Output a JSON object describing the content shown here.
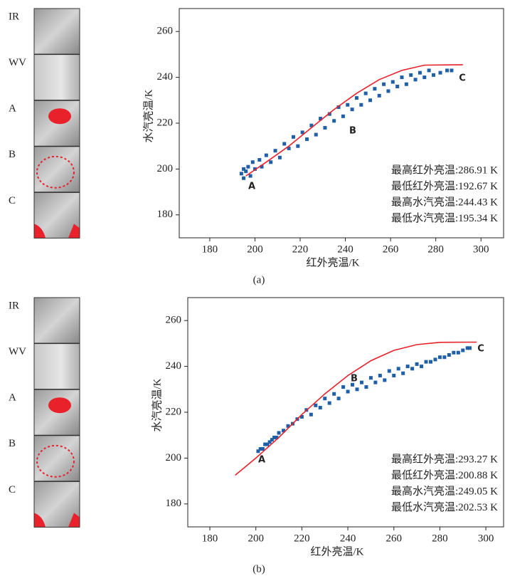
{
  "chart_data": [
    {
      "type": "scatter",
      "caption": "(a)",
      "xlabel": "红外亮温/K",
      "ylabel": "水汽亮温/K",
      "strip_labels": [
        "IR",
        "WV",
        "A",
        "B",
        "C"
      ],
      "xlim": [
        166.5,
        310
      ],
      "ylim": [
        170,
        270
      ],
      "xticks": [
        180,
        200,
        220,
        240,
        260,
        280,
        300
      ],
      "yticks": [
        180,
        200,
        220,
        240,
        260
      ],
      "points": {
        "color": "#1f5fa8",
        "x": [
          194,
          195,
          195,
          196,
          197,
          198,
          199,
          200,
          202,
          203,
          205,
          207,
          209,
          211,
          213,
          215,
          217,
          219,
          221,
          223,
          225,
          227,
          229,
          231,
          233,
          235,
          237,
          239,
          241,
          243,
          245,
          247,
          249,
          251,
          253,
          255,
          257,
          259,
          261,
          263,
          265,
          267,
          269,
          271,
          273,
          275,
          277,
          279,
          282,
          285,
          287
        ],
        "y": [
          198,
          200,
          196,
          199,
          201,
          197,
          203,
          200,
          204,
          201,
          206,
          203,
          208,
          205,
          211,
          209,
          214,
          210,
          216,
          213,
          219,
          215,
          222,
          218,
          224,
          221,
          227,
          223,
          228,
          226,
          231,
          228,
          233,
          230,
          235,
          232,
          237,
          234,
          238,
          236,
          240,
          237,
          241,
          239,
          242,
          240,
          243,
          241,
          242,
          243,
          243
        ]
      },
      "curve": {
        "color": "#e8212b",
        "x": [
          196,
          205,
          215,
          225,
          235,
          245,
          255,
          265,
          275,
          292
        ],
        "y": [
          197,
          203,
          210,
          218,
          226,
          233,
          239,
          243,
          245.3,
          245.5
        ]
      },
      "annotations": [
        "A",
        "B",
        "C"
      ],
      "stats": [
        "最高红外亮温:286.91 K",
        "最低红外亮温:192.67 K",
        "最高水汽亮温:244.43 K",
        "最低水汽亮温:195.34 K"
      ]
    },
    {
      "type": "scatter",
      "caption": "(b)",
      "xlabel": "红外亮温/K",
      "ylabel": "水汽亮温/K",
      "strip_labels": [
        "IR",
        "WV",
        "A",
        "B",
        "C"
      ],
      "xlim": [
        170.4,
        307.7
      ],
      "ylim": [
        170,
        270
      ],
      "xticks": [
        180,
        200,
        220,
        240,
        260,
        280,
        300
      ],
      "yticks": [
        180,
        200,
        220,
        240,
        260
      ],
      "points": {
        "color": "#1f5fa8",
        "x": [
          201,
          202,
          203,
          204,
          205,
          206,
          207,
          208,
          209,
          210,
          212,
          214,
          216,
          218,
          220,
          222,
          224,
          226,
          228,
          230,
          232,
          234,
          236,
          238,
          240,
          242,
          244,
          246,
          248,
          250,
          252,
          254,
          256,
          258,
          260,
          262,
          264,
          266,
          268,
          270,
          272,
          274,
          276,
          278,
          280,
          282,
          284,
          286,
          288,
          290,
          292,
          293
        ],
        "y": [
          203,
          204,
          204,
          206,
          206,
          207,
          208,
          209,
          209,
          211,
          212,
          214,
          215,
          217,
          218,
          221,
          219,
          223,
          222,
          226,
          224,
          228,
          226,
          231,
          229,
          232,
          230,
          233,
          231,
          235,
          233,
          236,
          234,
          238,
          236,
          239,
          237,
          240,
          239,
          241,
          240,
          242,
          242,
          243,
          244,
          244,
          245,
          246,
          246,
          247,
          248,
          248
        ]
      },
      "curve": {
        "color": "#e8212b",
        "x": [
          191,
          200,
          210,
          220,
          230,
          240,
          250,
          260,
          270,
          280,
          296
        ],
        "y": [
          192.5,
          200,
          209,
          219,
          228,
          236,
          242.5,
          247,
          249.5,
          250.5,
          250.6
        ]
      },
      "annotations": [
        "A",
        "B",
        "C"
      ],
      "stats": [
        "最高红外亮温:293.27 K",
        "最低红外亮温:200.88 K",
        "最高水汽亮温:249.05 K",
        "最低水汽亮温:202.53 K"
      ]
    }
  ]
}
